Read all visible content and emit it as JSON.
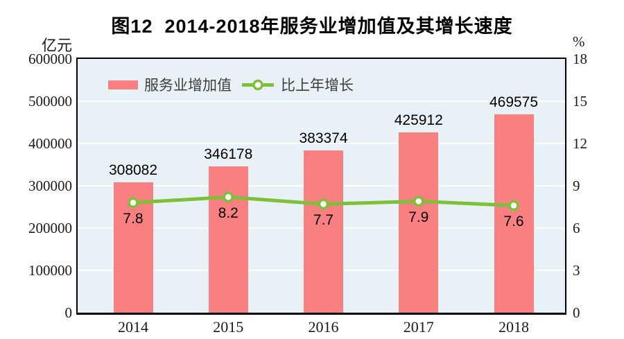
{
  "figure": {
    "title": "图12  2014-2018年服务业增加值及其增长速度"
  },
  "chart_data": {
    "type": "combo",
    "title": "图12  2014-2018年服务业增加值及其增长速度",
    "categories": [
      "2014",
      "2015",
      "2016",
      "2017",
      "2018"
    ],
    "series": [
      {
        "name": "服务业增加值",
        "type": "bar",
        "axis": "left",
        "values": [
          308082,
          346178,
          383374,
          425912,
          469575
        ],
        "color": "#F98080"
      },
      {
        "name": "比上年增长",
        "type": "line",
        "axis": "right",
        "values": [
          7.8,
          8.2,
          7.7,
          7.9,
          7.6
        ],
        "color": "#7CC139",
        "marker": "circle-white-fill-green-stroke"
      }
    ],
    "left_axis": {
      "unit": "亿元",
      "min": 0,
      "max": 600000,
      "step": 100000,
      "ticks": [
        0,
        100000,
        200000,
        300000,
        400000,
        500000,
        600000
      ]
    },
    "right_axis": {
      "unit": "%",
      "min": 0,
      "max": 18,
      "step": 3,
      "ticks": [
        0,
        3,
        6,
        9,
        12,
        15,
        18
      ]
    },
    "grid": "horizontal-white",
    "legend_position": "top-left-inside",
    "plot_background": "#E8F1F6"
  },
  "colors": {
    "bar": "#F98080",
    "line": "#7CC139",
    "marker_fill": "#FFFFFF",
    "plot_bg": "#E8F1F6",
    "gridline": "#FFFFFF",
    "border": "#000000",
    "text": "#1a1a1a"
  }
}
